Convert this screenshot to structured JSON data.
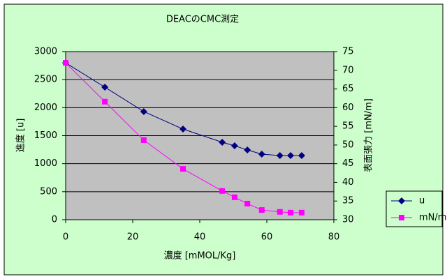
{
  "chart_data": {
    "type": "line",
    "title": "DEACのCMC測定",
    "x_label": "濃度 [mMOL/Kg]",
    "y_label": "進度 [u]",
    "y2_label": "表面張力 [mN/m]",
    "x": [
      0,
      11.7,
      23.3,
      35,
      46.7,
      50.4,
      54.2,
      58.5,
      63.9,
      67.1,
      70.4
    ],
    "series": [
      {
        "name": "u",
        "color": "#000080",
        "marker": "diamond",
        "values": [
          2800,
          2365,
          1930,
          1618,
          1382,
          1320,
          1245,
          1170,
          1145,
          1145,
          1145
        ]
      },
      {
        "name": "mN/m",
        "color": "#ff00ff",
        "marker": "square",
        "axis": "y2",
        "values": [
          72,
          61.6,
          51.3,
          43.6,
          37.7,
          36,
          34.3,
          32.6,
          32.1,
          31.9,
          31.9
        ]
      }
    ],
    "xlim": [
      0,
      80
    ],
    "xticks": [
      0,
      20,
      40,
      60,
      80
    ],
    "ylim": [
      0,
      3000
    ],
    "yticks": [
      0,
      500,
      1000,
      1500,
      2000,
      2500,
      3000
    ],
    "y2lim": [
      30,
      75
    ],
    "y2ticks": [
      30,
      35,
      40,
      45,
      50,
      55,
      60,
      65,
      70,
      75
    ],
    "grid": true,
    "legend": "lower right"
  }
}
